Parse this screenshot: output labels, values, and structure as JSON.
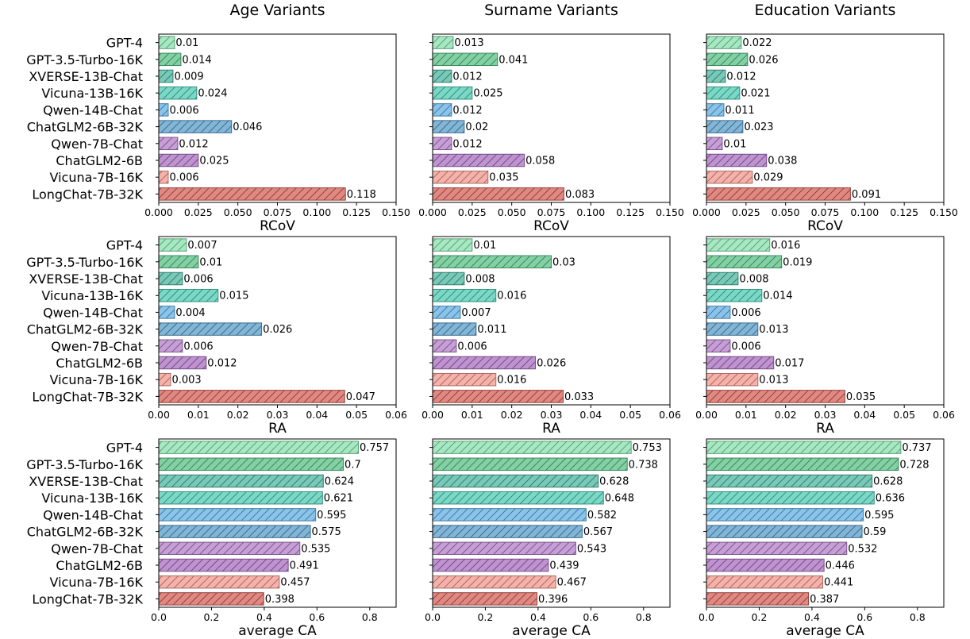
{
  "chart_data": {
    "type": "bar",
    "orientation": "horizontal",
    "column_titles": [
      "Age Variants",
      "Surname Variants",
      "Education Variants"
    ],
    "models": [
      "GPT-4",
      "GPT-3.5-Turbo-16K",
      "XVERSE-13B-Chat",
      "Vicuna-13B-16K",
      "Qwen-14B-Chat",
      "ChatGLM2-6B-32K",
      "Qwen-7B-Chat",
      "ChatGLM2-6B",
      "Vicuna-7B-16K",
      "LongChat-7B-32K"
    ],
    "colors": [
      "#82e0aa",
      "#52be80",
      "#45b39d",
      "#48c9b0",
      "#5dade2",
      "#5499c7",
      "#af7ac5",
      "#a569bd",
      "#f1948a",
      "#d35c52"
    ],
    "rows": [
      {
        "metric": "RCoV",
        "xlabel": "RCoV",
        "xlim": [
          0,
          0.15
        ],
        "xticks": [
          0,
          0.025,
          0.05,
          0.075,
          0.1,
          0.125,
          0.15
        ],
        "xtick_labels": [
          "0.000",
          "0.025",
          "0.050",
          "0.075",
          "0.100",
          "0.125",
          "0.150"
        ],
        "panels": [
          {
            "labels": [
              "0.01",
              "0.014",
              "0.009",
              "0.024",
              "0.006",
              "0.046",
              "0.012",
              "0.025",
              "0.006",
              "0.118"
            ],
            "values": [
              0.01,
              0.014,
              0.009,
              0.024,
              0.006,
              0.046,
              0.012,
              0.025,
              0.006,
              0.118
            ]
          },
          {
            "labels": [
              "0.013",
              "0.041",
              "0.012",
              "0.025",
              "0.012",
              "0.02",
              "0.012",
              "0.058",
              "0.035",
              "0.083"
            ],
            "values": [
              0.013,
              0.041,
              0.012,
              0.025,
              0.012,
              0.02,
              0.012,
              0.058,
              0.035,
              0.083
            ]
          },
          {
            "labels": [
              "0.022",
              "0.026",
              "0.012",
              "0.021",
              "0.011",
              "0.023",
              "0.01",
              "0.038",
              "0.029",
              "0.091"
            ],
            "values": [
              0.022,
              0.026,
              0.012,
              0.021,
              0.011,
              0.023,
              0.01,
              0.038,
              0.029,
              0.091
            ]
          }
        ]
      },
      {
        "metric": "RA",
        "xlabel": "RA",
        "xlim": [
          0,
          0.06
        ],
        "xticks": [
          0,
          0.01,
          0.02,
          0.03,
          0.04,
          0.05,
          0.06
        ],
        "xtick_labels": [
          "0.00",
          "0.01",
          "0.02",
          "0.03",
          "0.04",
          "0.05",
          "0.06"
        ],
        "panels": [
          {
            "labels": [
              "0.007",
              "0.01",
              "0.006",
              "0.015",
              "0.004",
              "0.026",
              "0.006",
              "0.012",
              "0.003",
              "0.047"
            ],
            "values": [
              0.007,
              0.01,
              0.006,
              0.015,
              0.004,
              0.026,
              0.006,
              0.012,
              0.003,
              0.047
            ]
          },
          {
            "labels": [
              "0.01",
              "0.03",
              "0.008",
              "0.016",
              "0.007",
              "0.011",
              "0.006",
              "0.026",
              "0.016",
              "0.033"
            ],
            "values": [
              0.01,
              0.03,
              0.008,
              0.016,
              0.007,
              0.011,
              0.006,
              0.026,
              0.016,
              0.033
            ]
          },
          {
            "labels": [
              "0.016",
              "0.019",
              "0.008",
              "0.014",
              "0.006",
              "0.013",
              "0.006",
              "0.017",
              "0.013",
              "0.035"
            ],
            "values": [
              0.016,
              0.019,
              0.008,
              0.014,
              0.006,
              0.013,
              0.006,
              0.017,
              0.013,
              0.035
            ]
          }
        ]
      },
      {
        "metric": "average CA",
        "xlabel": "average CA",
        "xlim": [
          0,
          0.9
        ],
        "xticks": [
          0,
          0.2,
          0.4,
          0.6,
          0.8
        ],
        "xtick_labels": [
          "0.0",
          "0.2",
          "0.4",
          "0.6",
          "0.8"
        ],
        "panels": [
          {
            "labels": [
              "0.757",
              "0.7",
              "0.624",
              "0.621",
              "0.595",
              "0.575",
              "0.535",
              "0.491",
              "0.457",
              "0.398"
            ],
            "values": [
              0.757,
              0.7,
              0.624,
              0.621,
              0.595,
              0.575,
              0.535,
              0.491,
              0.457,
              0.398
            ]
          },
          {
            "labels": [
              "0.753",
              "0.738",
              "0.628",
              "0.648",
              "0.582",
              "0.567",
              "0.543",
              "0.439",
              "0.467",
              "0.396"
            ],
            "values": [
              0.753,
              0.738,
              0.628,
              0.648,
              0.582,
              0.567,
              0.543,
              0.439,
              0.467,
              0.396
            ]
          },
          {
            "labels": [
              "0.737",
              "0.728",
              "0.628",
              "0.636",
              "0.595",
              "0.59",
              "0.532",
              "0.446",
              "0.441",
              "0.387"
            ],
            "values": [
              0.737,
              0.728,
              0.628,
              0.636,
              0.595,
              0.59,
              0.532,
              0.446,
              0.441,
              0.387
            ]
          }
        ]
      }
    ]
  }
}
